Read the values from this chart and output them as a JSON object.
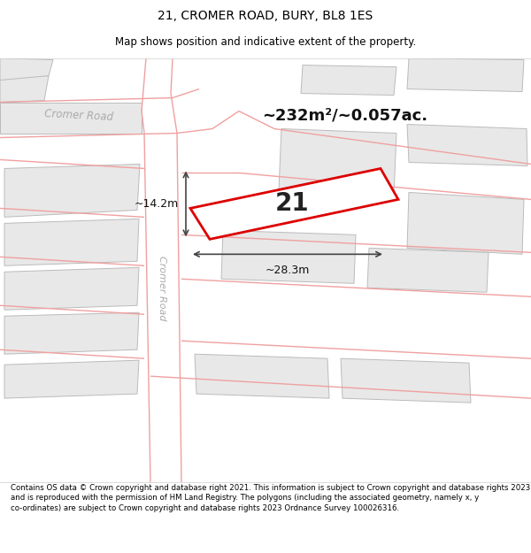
{
  "title_line1": "21, CROMER ROAD, BURY, BL8 1ES",
  "title_line2": "Map shows position and indicative extent of the property.",
  "footer_text": "Contains OS data © Crown copyright and database right 2021. This information is subject to Crown copyright and database rights 2023 and is reproduced with the permission of HM Land Registry. The polygons (including the associated geometry, namely x, y co-ordinates) are subject to Crown copyright and database rights 2023 Ordnance Survey 100026316.",
  "area_label": "~232m²/~0.057ac.",
  "property_number": "21",
  "dim_width": "~28.3m",
  "dim_height": "~14.2m",
  "road_label_horiz": "Cromer Road",
  "road_label_vert": "Cromer Road",
  "map_bg_color": "#ffffff",
  "property_fill": "#ffffff",
  "property_edge": "#dd0000",
  "other_building_fill": "#e8e8e8",
  "other_building_edge": "#bbbbbb",
  "road_lines_color": "#f0a0a0",
  "dim_line_color": "#444444",
  "title_fontsize": 10,
  "subtitle_fontsize": 8.5,
  "footer_fontsize": 6.2,
  "road_label_color": "#aaaaaa"
}
